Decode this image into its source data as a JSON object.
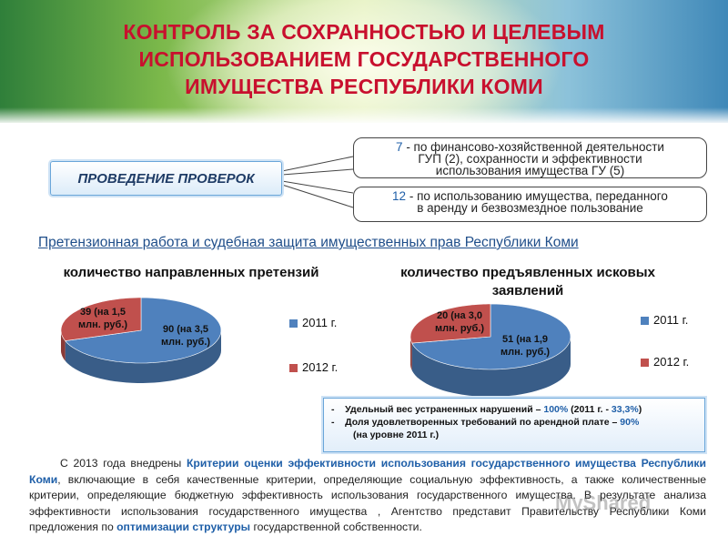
{
  "title": {
    "line1": "КОНТРОЛЬ ЗА СОХРАННОСТЬЮ И ЦЕЛЕВЫМ",
    "line2": "ИСПОЛЬЗОВАНИЕМ ГОСУДАРСТВЕННОГО",
    "line3": "ИМУЩЕСТВА РЕСПУБЛИКИ КОМИ"
  },
  "checks_label": "ПРОВЕДЕНИЕ ПРОВЕРОК",
  "notes": [
    {
      "num": "7",
      "line1": " - по финансово-хозяйственной деятельности",
      "line2": "ГУП (2), сохранности и эффективности",
      "line3": "использования имущества ГУ (5)"
    },
    {
      "num": "12",
      "line1": " - по использованию имущества, переданного",
      "line2": "в аренду и безвозмездное пользование"
    }
  ],
  "subtitle": "Претензионная работа и судебная защита имущественных прав Республики Коми",
  "chart_data": [
    {
      "type": "pie",
      "title": "количество направленных претензий",
      "categories": [
        "2011 г.",
        "2012 г."
      ],
      "values": [
        90,
        39
      ],
      "data_labels": [
        "90 (на 3,5 млн. руб.)",
        "39 (на 1,5 млн. руб.)"
      ],
      "colors": [
        "#4f81bd",
        "#c0504d"
      ],
      "legend": "right"
    },
    {
      "type": "pie",
      "title": "количество предъявленных исковых заявлений",
      "categories": [
        "2011 г.",
        "2012 г."
      ],
      "values": [
        51,
        20
      ],
      "data_labels": [
        "51 (на 1,9 млн. руб.)",
        "20 (на 3,0 млн. руб.)"
      ],
      "colors": [
        "#4f81bd",
        "#c0504d"
      ],
      "legend": "right"
    }
  ],
  "chart_labels": {
    "c1_a_l1": "90 (на 3,5",
    "c1_a_l2": "млн. руб.)",
    "c1_b_l1": "39 (на 1,5",
    "c1_b_l2": "млн. руб.)",
    "c2_a_l1": "51 (на 1,9",
    "c2_a_l2": "млн. руб.)",
    "c2_b_l1": "20 (на 3,0",
    "c2_b_l2": "млн. руб.)",
    "c2_title_l1": "количество предъявленных исковых",
    "c2_title_l2": "заявлений"
  },
  "summary": {
    "item1_text": "Удельный вес устраненных нарушений – ",
    "item1_pct": "100%",
    "item1_tail": "  (2011 г. - ",
    "item1_pct2": "33,3%",
    "item1_end": ")",
    "item2_text": "Доля удовлетворенных требований по арендной плате – ",
    "item2_pct": "90%",
    "item2_line2": "(на уровне 2011 г.)"
  },
  "paragraph": {
    "p1": "С 2013 года внедрены ",
    "hl1": "Критерии оценки эффективности использования государственного имущества Республики Коми",
    "p2": ", включающие в себя качественные критерии, определяющие социальную эффективность, а также количественные критерии, определяющие бюджетную эффективность использования государственного имущества. В результате анализа эффективности использования государственного имущества , Агентство представит Правительству Республики Коми предложения по ",
    "hl2": "оптимизации структуры",
    "p3": " государственной собственности."
  },
  "watermark": "MyShared"
}
